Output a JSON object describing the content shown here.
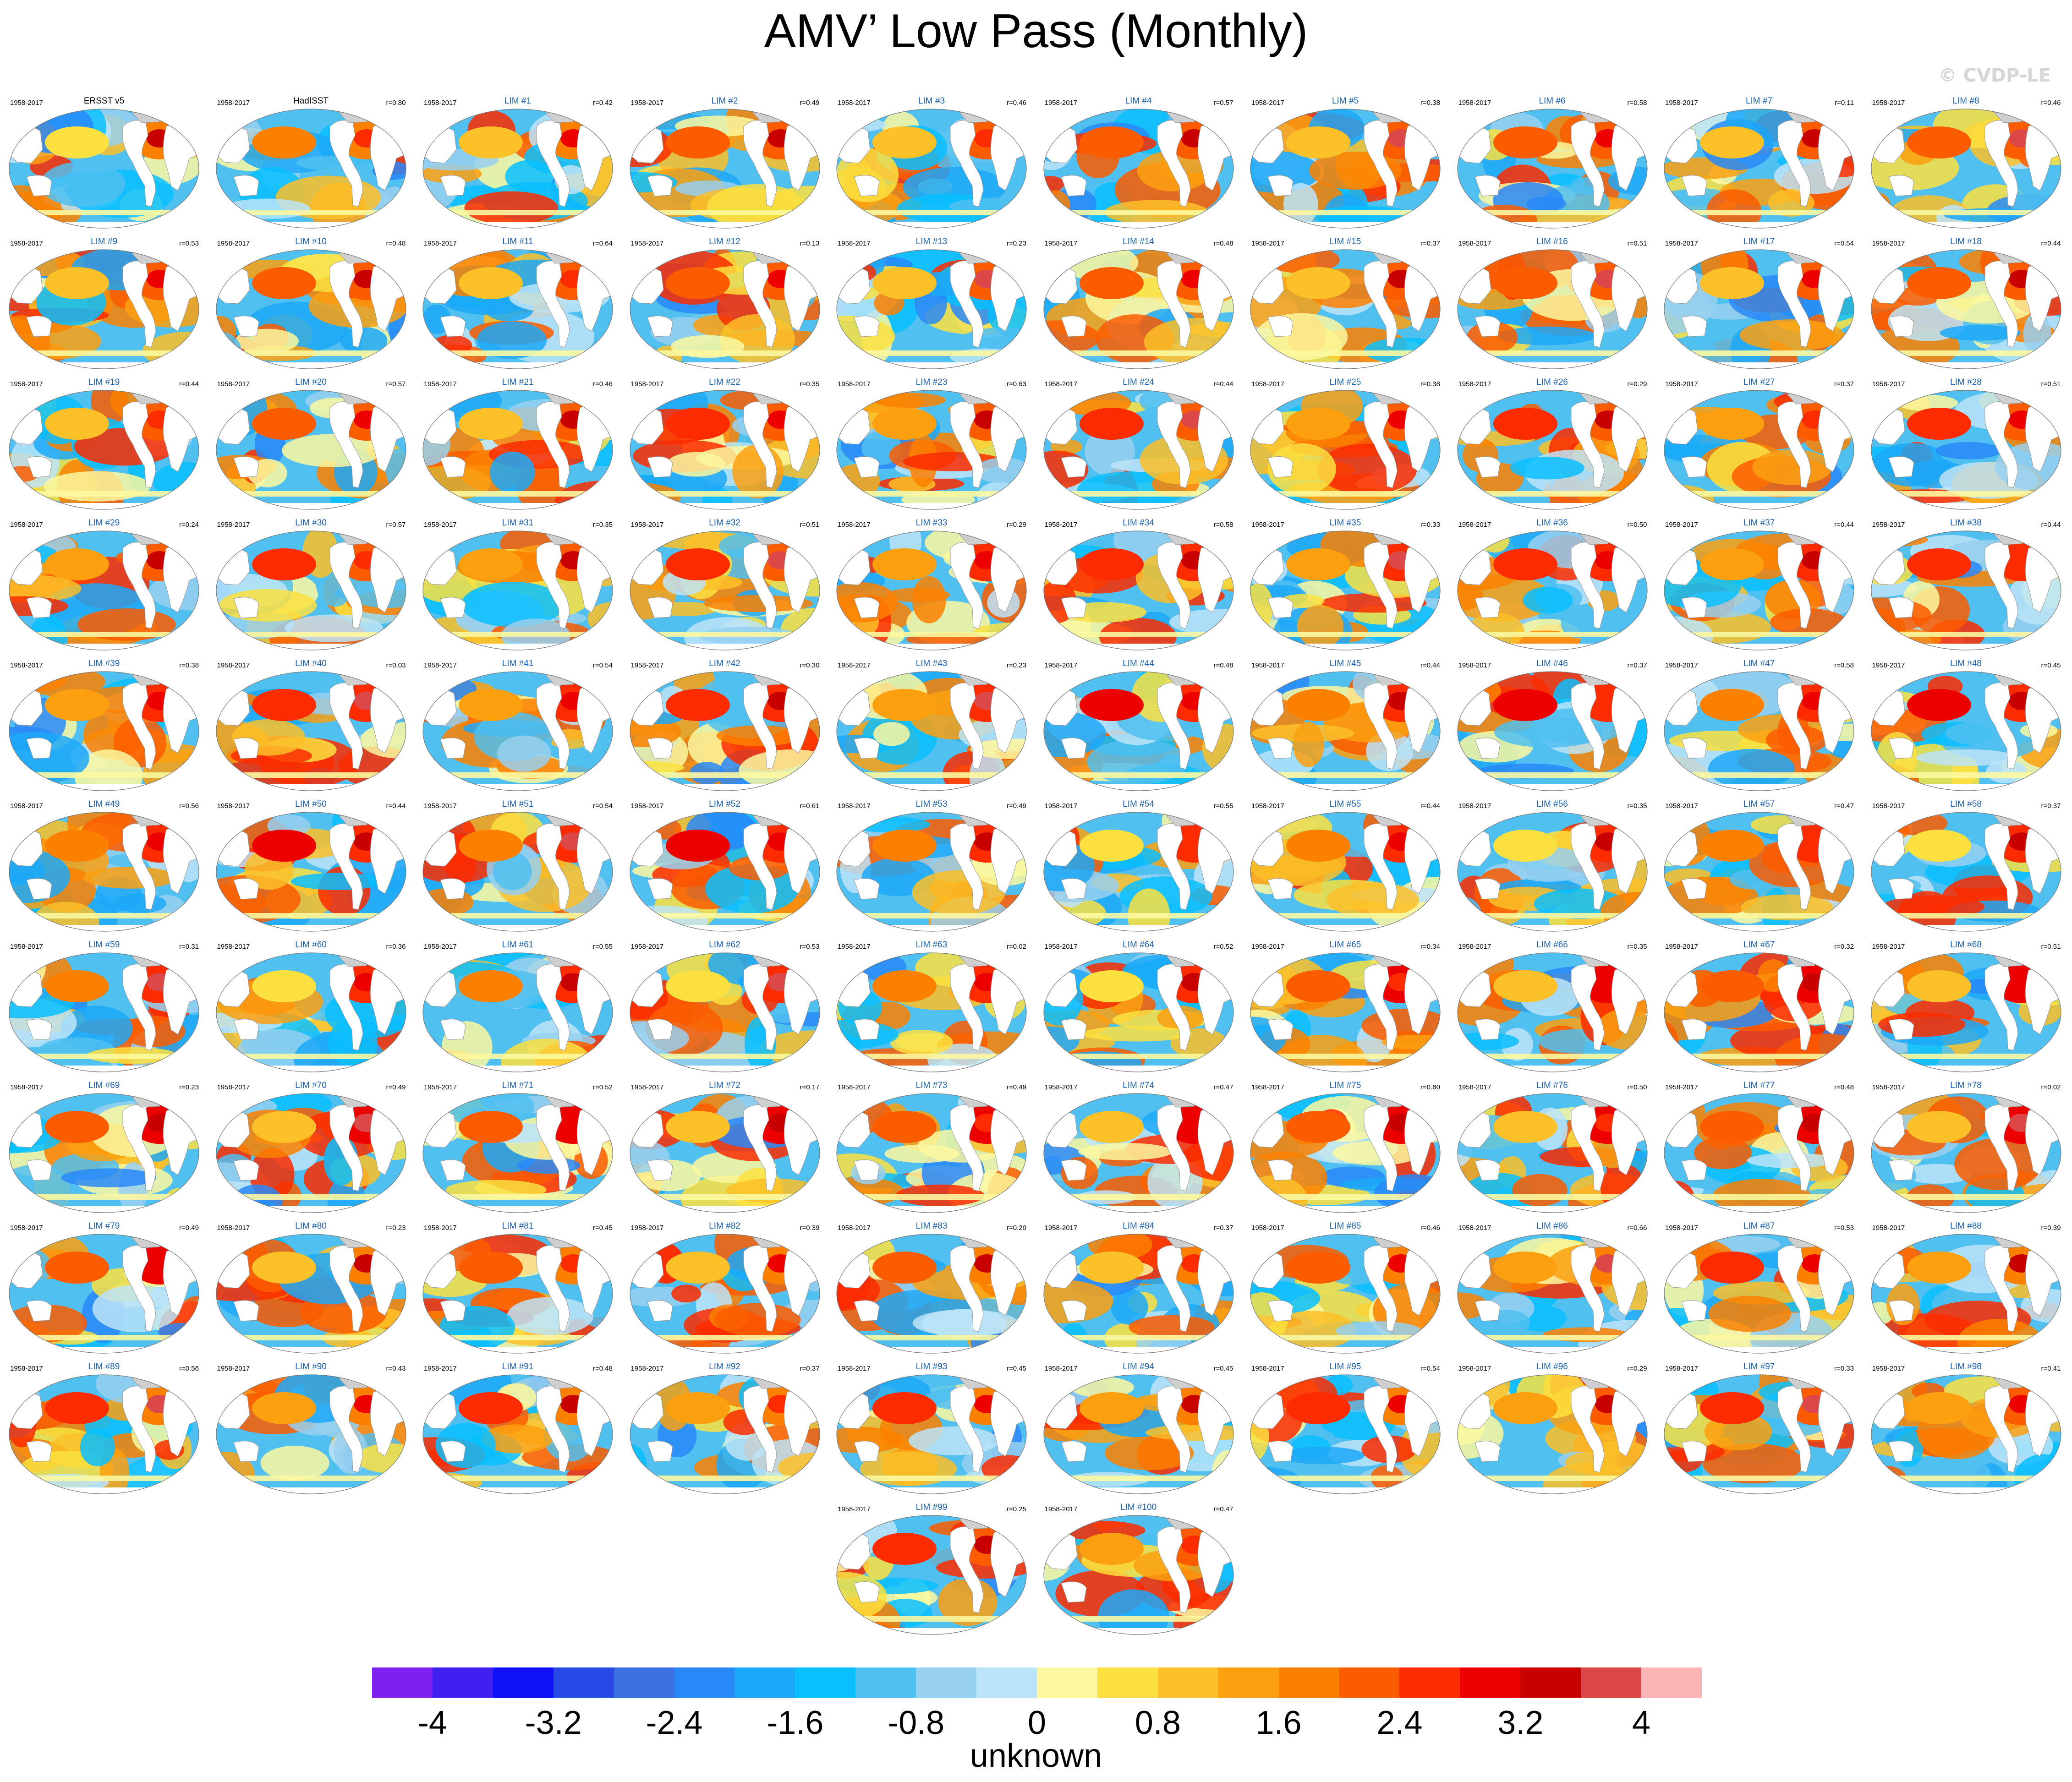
{
  "title": "AMV’ Low Pass (Monthly)",
  "watermark": "© CVDP-LE",
  "period": "1958-2017",
  "units_label": "unknown",
  "colorbar": {
    "colors": [
      "#8020f0",
      "#4020f0",
      "#1010f8",
      "#2848e8",
      "#3c70e0",
      "#2888f8",
      "#1ca8f8",
      "#08c0ff",
      "#50c0f0",
      "#98d0f0",
      "#bce4f8",
      "#fcf8a0",
      "#fce040",
      "#fcc028",
      "#fca010",
      "#fc8000",
      "#fc5c00",
      "#fc2c00",
      "#ec0000",
      "#c80000",
      "#dc4848",
      "#fcb4b4"
    ],
    "tick_labels": [
      "-4",
      "-3.2",
      "-2.4",
      "-1.6",
      "-0.8",
      "0",
      "0.8",
      "1.6",
      "2.4",
      "3.2",
      "4"
    ]
  },
  "chart_data": {
    "type": "heatmap",
    "title": "AMV’ Low Pass (Monthly)",
    "colorbar_range": [
      -4.4,
      4.4
    ],
    "colorbar_levels": [
      -4,
      -3.6,
      -3.2,
      -2.8,
      -2.4,
      -2.0,
      -1.6,
      -1.2,
      -0.8,
      -0.4,
      0,
      0.4,
      0.8,
      1.2,
      1.6,
      2.0,
      2.4,
      2.8,
      3.2,
      3.6,
      4
    ],
    "colorbar_ticks": [
      -4,
      -3.2,
      -2.4,
      -1.6,
      -0.8,
      0,
      0.8,
      1.6,
      2.4,
      3.2,
      4
    ],
    "units": "unknown",
    "panels": [
      {
        "label": "ERSST v5",
        "period": "1958-2017",
        "r": ""
      },
      {
        "label": "HadISST",
        "period": "1958-2017",
        "r": "r=0.80"
      },
      {
        "label": "LIM #1",
        "period": "1958-2017",
        "r": "r=0.42"
      },
      {
        "label": "LIM #2",
        "period": "1958-2017",
        "r": "r=0.49"
      },
      {
        "label": "LIM #3",
        "period": "1958-2017",
        "r": "r=0.46"
      },
      {
        "label": "LIM #4",
        "period": "1958-2017",
        "r": "r=0.57"
      },
      {
        "label": "LIM #5",
        "period": "1958-2017",
        "r": "r=0.38"
      },
      {
        "label": "LIM #6",
        "period": "1958-2017",
        "r": "r=0.58"
      },
      {
        "label": "LIM #7",
        "period": "1958-2017",
        "r": "r=0.11"
      },
      {
        "label": "LIM #8",
        "period": "1958-2017",
        "r": "r=0.46"
      },
      {
        "label": "LIM #9",
        "period": "1958-2017",
        "r": "r=0.53"
      },
      {
        "label": "LIM #10",
        "period": "1958-2017",
        "r": "r=0.48"
      },
      {
        "label": "LIM #11",
        "period": "1958-2017",
        "r": "r=0.64"
      },
      {
        "label": "LIM #12",
        "period": "1958-2017",
        "r": "r=0.13"
      },
      {
        "label": "LIM #13",
        "period": "1958-2017",
        "r": "r=0.23"
      },
      {
        "label": "LIM #14",
        "period": "1958-2017",
        "r": "r=0.48"
      },
      {
        "label": "LIM #15",
        "period": "1958-2017",
        "r": "r=0.37"
      },
      {
        "label": "LIM #16",
        "period": "1958-2017",
        "r": "r=0.51"
      },
      {
        "label": "LIM #17",
        "period": "1958-2017",
        "r": "r=0.54"
      },
      {
        "label": "LIM #18",
        "period": "1958-2017",
        "r": "r=0.44"
      },
      {
        "label": "LIM #19",
        "period": "1958-2017",
        "r": "r=0.44"
      },
      {
        "label": "LIM #20",
        "period": "1958-2017",
        "r": "r=0.57"
      },
      {
        "label": "LIM #21",
        "period": "1958-2017",
        "r": "r=0.46"
      },
      {
        "label": "LIM #22",
        "period": "1958-2017",
        "r": "r=0.35"
      },
      {
        "label": "LIM #23",
        "period": "1958-2017",
        "r": "r=0.63"
      },
      {
        "label": "LIM #24",
        "period": "1958-2017",
        "r": "r=0.44"
      },
      {
        "label": "LIM #25",
        "period": "1958-2017",
        "r": "r=0.38"
      },
      {
        "label": "LIM #26",
        "period": "1958-2017",
        "r": "r=0.29"
      },
      {
        "label": "LIM #27",
        "period": "1958-2017",
        "r": "r=0.37"
      },
      {
        "label": "LIM #28",
        "period": "1958-2017",
        "r": "r=0.51"
      },
      {
        "label": "LIM #29",
        "period": "1958-2017",
        "r": "r=0.24"
      },
      {
        "label": "LIM #30",
        "period": "1958-2017",
        "r": "r=0.57"
      },
      {
        "label": "LIM #31",
        "period": "1958-2017",
        "r": "r=0.35"
      },
      {
        "label": "LIM #32",
        "period": "1958-2017",
        "r": "r=0.51"
      },
      {
        "label": "LIM #33",
        "period": "1958-2017",
        "r": "r=0.29"
      },
      {
        "label": "LIM #34",
        "period": "1958-2017",
        "r": "r=0.58"
      },
      {
        "label": "LIM #35",
        "period": "1958-2017",
        "r": "r=0.33"
      },
      {
        "label": "LIM #36",
        "period": "1958-2017",
        "r": "r=0.50"
      },
      {
        "label": "LIM #37",
        "period": "1958-2017",
        "r": "r=0.44"
      },
      {
        "label": "LIM #38",
        "period": "1958-2017",
        "r": "r=0.44"
      },
      {
        "label": "LIM #39",
        "period": "1958-2017",
        "r": "r=0.38"
      },
      {
        "label": "LIM #40",
        "period": "1958-2017",
        "r": "r=0.03"
      },
      {
        "label": "LIM #41",
        "period": "1958-2017",
        "r": "r=0.54"
      },
      {
        "label": "LIM #42",
        "period": "1958-2017",
        "r": "r=0.30"
      },
      {
        "label": "LIM #43",
        "period": "1958-2017",
        "r": "r=0.23"
      },
      {
        "label": "LIM #44",
        "period": "1958-2017",
        "r": "r=0.48"
      },
      {
        "label": "LIM #45",
        "period": "1958-2017",
        "r": "r=0.44"
      },
      {
        "label": "LIM #46",
        "period": "1958-2017",
        "r": "r=0.37"
      },
      {
        "label": "LIM #47",
        "period": "1958-2017",
        "r": "r=0.58"
      },
      {
        "label": "LIM #48",
        "period": "1958-2017",
        "r": "r=0.45"
      },
      {
        "label": "LIM #49",
        "period": "1958-2017",
        "r": "r=0.56"
      },
      {
        "label": "LIM #50",
        "period": "1958-2017",
        "r": "r=0.44"
      },
      {
        "label": "LIM #51",
        "period": "1958-2017",
        "r": "r=0.54"
      },
      {
        "label": "LIM #52",
        "period": "1958-2017",
        "r": "r=0.61"
      },
      {
        "label": "LIM #53",
        "period": "1958-2017",
        "r": "r=0.49"
      },
      {
        "label": "LIM #54",
        "period": "1958-2017",
        "r": "r=0.55"
      },
      {
        "label": "LIM #55",
        "period": "1958-2017",
        "r": "r=0.44"
      },
      {
        "label": "LIM #56",
        "period": "1958-2017",
        "r": "r=0.35"
      },
      {
        "label": "LIM #57",
        "period": "1958-2017",
        "r": "r=0.47"
      },
      {
        "label": "LIM #58",
        "period": "1958-2017",
        "r": "r=0.37"
      },
      {
        "label": "LIM #59",
        "period": "1958-2017",
        "r": "r=0.31"
      },
      {
        "label": "LIM #60",
        "period": "1958-2017",
        "r": "r=0.36"
      },
      {
        "label": "LIM #61",
        "period": "1958-2017",
        "r": "r=0.55"
      },
      {
        "label": "LIM #62",
        "period": "1958-2017",
        "r": "r=0.53"
      },
      {
        "label": "LIM #63",
        "period": "1958-2017",
        "r": "r=0.02"
      },
      {
        "label": "LIM #64",
        "period": "1958-2017",
        "r": "r=0.52"
      },
      {
        "label": "LIM #65",
        "period": "1958-2017",
        "r": "r=0.34"
      },
      {
        "label": "LIM #66",
        "period": "1958-2017",
        "r": "r=0.35"
      },
      {
        "label": "LIM #67",
        "period": "1958-2017",
        "r": "r=0.32"
      },
      {
        "label": "LIM #68",
        "period": "1958-2017",
        "r": "r=0.51"
      },
      {
        "label": "LIM #69",
        "period": "1958-2017",
        "r": "r=0.23"
      },
      {
        "label": "LIM #70",
        "period": "1958-2017",
        "r": "r=0.49"
      },
      {
        "label": "LIM #71",
        "period": "1958-2017",
        "r": "r=0.52"
      },
      {
        "label": "LIM #72",
        "period": "1958-2017",
        "r": "r=0.17"
      },
      {
        "label": "LIM #73",
        "period": "1958-2017",
        "r": "r=0.49"
      },
      {
        "label": "LIM #74",
        "period": "1958-2017",
        "r": "r=0.47"
      },
      {
        "label": "LIM #75",
        "period": "1958-2017",
        "r": "r=0.60"
      },
      {
        "label": "LIM #76",
        "period": "1958-2017",
        "r": "r=0.50"
      },
      {
        "label": "LIM #77",
        "period": "1958-2017",
        "r": "r=0.48"
      },
      {
        "label": "LIM #78",
        "period": "1958-2017",
        "r": "r=0.02"
      },
      {
        "label": "LIM #79",
        "period": "1958-2017",
        "r": "r=0.49"
      },
      {
        "label": "LIM #80",
        "period": "1958-2017",
        "r": "r=0.23"
      },
      {
        "label": "LIM #81",
        "period": "1958-2017",
        "r": "r=0.45"
      },
      {
        "label": "LIM #82",
        "period": "1958-2017",
        "r": "r=0.39"
      },
      {
        "label": "LIM #83",
        "period": "1958-2017",
        "r": "r=0.20"
      },
      {
        "label": "LIM #84",
        "period": "1958-2017",
        "r": "r=0.37"
      },
      {
        "label": "LIM #85",
        "period": "1958-2017",
        "r": "r=0.46"
      },
      {
        "label": "LIM #86",
        "period": "1958-2017",
        "r": "r=0.66"
      },
      {
        "label": "LIM #87",
        "period": "1958-2017",
        "r": "r=0.53"
      },
      {
        "label": "LIM #88",
        "period": "1958-2017",
        "r": "r=0.39"
      },
      {
        "label": "LIM #89",
        "period": "1958-2017",
        "r": "r=0.56"
      },
      {
        "label": "LIM #90",
        "period": "1958-2017",
        "r": "r=0.43"
      },
      {
        "label": "LIM #91",
        "period": "1958-2017",
        "r": "r=0.48"
      },
      {
        "label": "LIM #92",
        "period": "1958-2017",
        "r": "r=0.37"
      },
      {
        "label": "LIM #93",
        "period": "1958-2017",
        "r": "r=0.45"
      },
      {
        "label": "LIM #94",
        "period": "1958-2017",
        "r": "r=0.45"
      },
      {
        "label": "LIM #95",
        "period": "1958-2017",
        "r": "r=0.54"
      },
      {
        "label": "LIM #96",
        "period": "1958-2017",
        "r": "r=0.29"
      },
      {
        "label": "LIM #97",
        "period": "1958-2017",
        "r": "r=0.33"
      },
      {
        "label": "LIM #98",
        "period": "1958-2017",
        "r": "r=0.41"
      },
      {
        "label": "LIM #99",
        "period": "1958-2017",
        "r": "r=0.25"
      },
      {
        "label": "LIM #100",
        "period": "1958-2017",
        "r": "r=0.47"
      }
    ]
  }
}
